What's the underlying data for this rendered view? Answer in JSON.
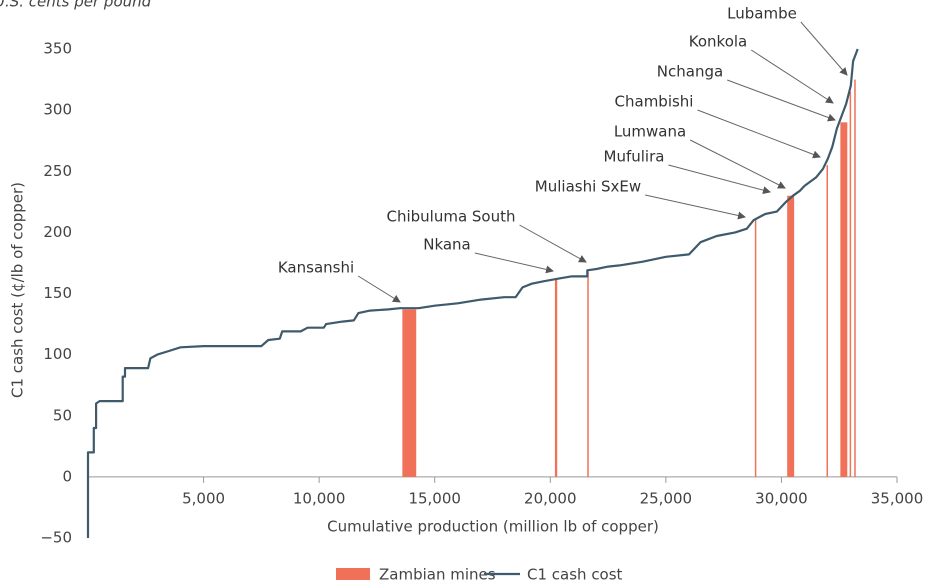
{
  "chart_data": {
    "type": "combo",
    "subtitle": "U.S. cents per pound",
    "xlabel": "Cumulative production (million lb of copper)",
    "ylabel": "C1 cash cost (¢/lb of copper)",
    "xlim": [
      0,
      35000
    ],
    "xticks": [
      {
        "value": 5000,
        "label": "5,000"
      },
      {
        "value": 10000,
        "label": "10,000"
      },
      {
        "value": 15000,
        "label": "15,000"
      },
      {
        "value": 20000,
        "label": "20,000"
      },
      {
        "value": 25000,
        "label": "25,000"
      },
      {
        "value": 30000,
        "label": "30,000"
      },
      {
        "value": 35000,
        "label": "35,000"
      }
    ],
    "ylim": [
      -50,
      350
    ],
    "yticks": [
      {
        "value": -50,
        "label": "−50"
      },
      0,
      50,
      100,
      150,
      200,
      250,
      300,
      350
    ],
    "grid": false,
    "legend": "bottom",
    "series": [
      {
        "name": "Zambian mines",
        "type": "bar",
        "color": "#f07158",
        "labels": [
          "Kansanshi",
          "Nkana",
          "Chibuluma South",
          "Muliashi SxEw",
          "Mufulira",
          "Lumwana",
          "Chambishi",
          "Nchanga",
          "Konkola",
          "Lubambe"
        ],
        "x0": [
          13600,
          20200,
          21600,
          28850,
          30250,
          30350,
          31950,
          32550,
          32950,
          33150
        ],
        "x1": [
          14200,
          20300,
          21650,
          28900,
          30350,
          30550,
          32000,
          32850,
          33000,
          33200
        ],
        "values": [
          137,
          162,
          168,
          210,
          230,
          230,
          255,
          290,
          315,
          325
        ]
      },
      {
        "name": "C1 cash cost",
        "type": "line",
        "color": "#3e5a6b",
        "x": [
          0,
          0,
          250,
          250,
          350,
          350,
          500,
          1500,
          1500,
          1600,
          1600,
          2600,
          2700,
          3000,
          3500,
          4000,
          5000,
          7500,
          7800,
          8300,
          8400,
          9200,
          9500,
          10200,
          10300,
          11000,
          11500,
          11700,
          12200,
          13000,
          13500,
          14300,
          15000,
          16000,
          17000,
          18000,
          18500,
          18800,
          19200,
          19700,
          20300,
          20900,
          21600,
          21600,
          22000,
          22500,
          23000,
          24000,
          25000,
          26000,
          26500,
          27200,
          28000,
          28500,
          28800,
          29300,
          29800,
          30200,
          30500,
          30800,
          31000,
          31500,
          31800,
          32000,
          32200,
          32400,
          32600,
          32800,
          33000,
          33100,
          33200,
          33300
        ],
        "values": [
          -50,
          20,
          20,
          40,
          40,
          60,
          62,
          62,
          82,
          82,
          89,
          89,
          97,
          100,
          103,
          106,
          107,
          107,
          112,
          113,
          119,
          119,
          122,
          122,
          125,
          127,
          128,
          134,
          136,
          137,
          138,
          138,
          140,
          142,
          145,
          147,
          147,
          155,
          158,
          160,
          162,
          164,
          164,
          169,
          170,
          172,
          173,
          176,
          180,
          182,
          192,
          197,
          200,
          203,
          210,
          215,
          217,
          225,
          230,
          234,
          238,
          245,
          252,
          260,
          270,
          285,
          295,
          305,
          320,
          340,
          345,
          350
        ]
      }
    ]
  }
}
